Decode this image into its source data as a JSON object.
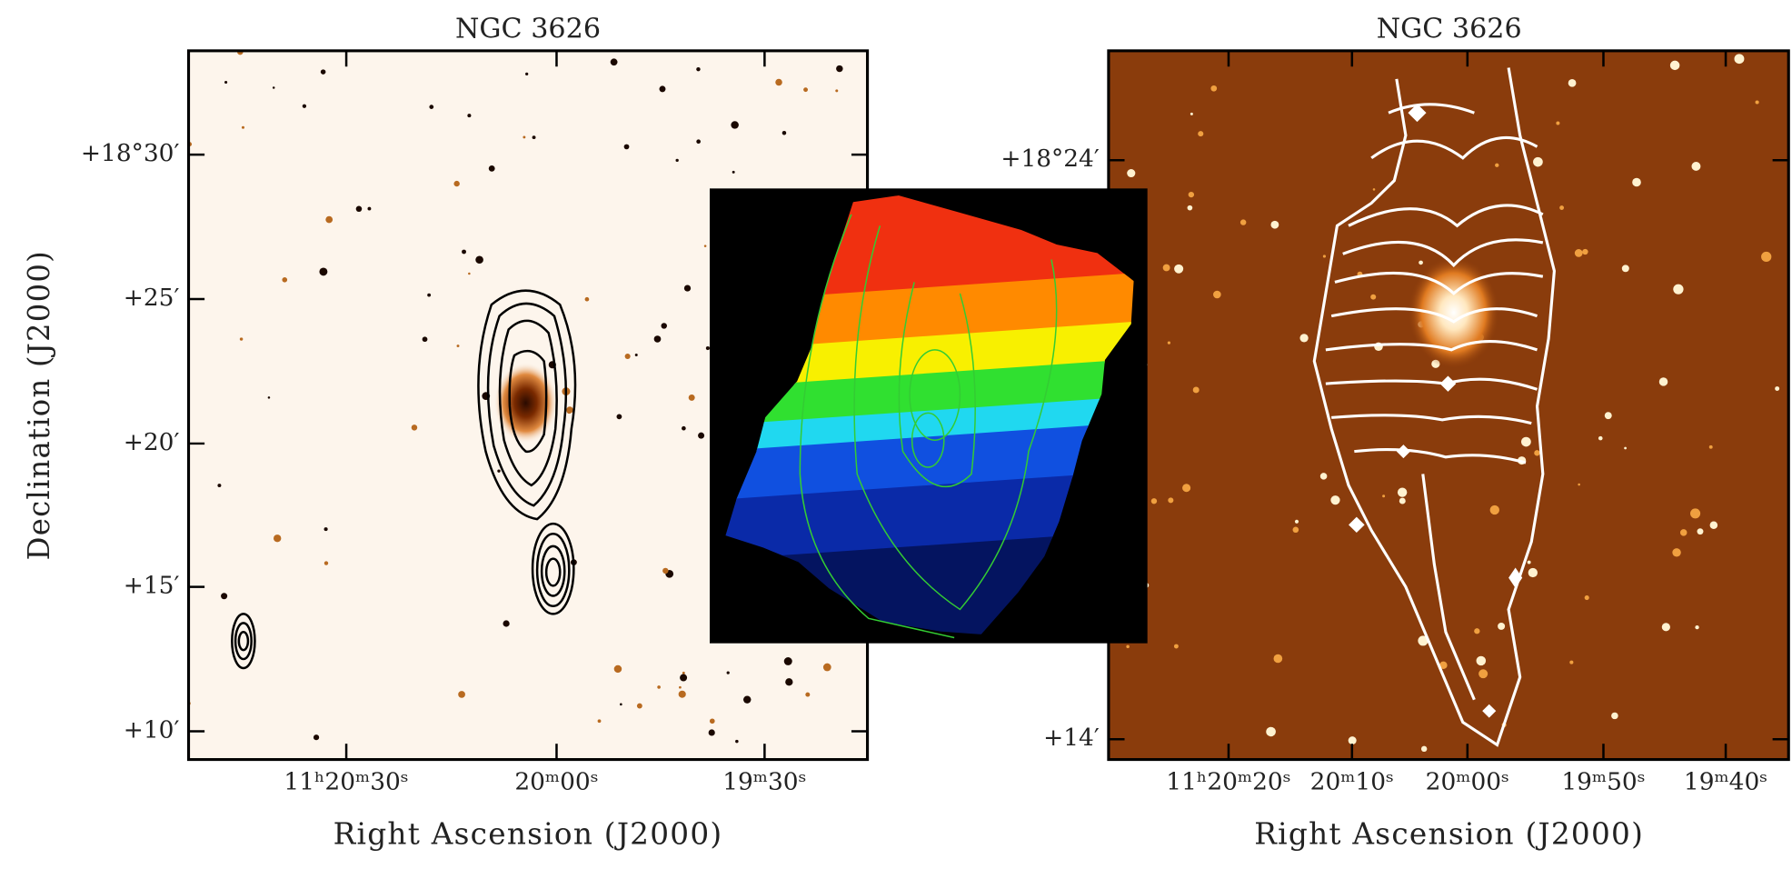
{
  "panels": [
    {
      "title": "NGC 3626",
      "x_label": "Right Ascension (J2000)",
      "y_label": "Declination (J2000)",
      "y_ticks": [
        "+18°30′",
        "+25′",
        "+20′",
        "+15′",
        "+10′"
      ],
      "x_ticks": [
        "11ʰ20ᵐ30ˢ",
        "20ᵐ00ˢ",
        "19ᵐ30ˢ"
      ]
    },
    {
      "title": "NGC 3626",
      "x_label": "Right Ascension (J2000)",
      "y_ticks": [
        "+18°24′",
        "+14′"
      ],
      "x_ticks": [
        "11ʰ20ᵐ20ˢ",
        "20ᵐ10ˢ",
        "20ᵐ00ˢ",
        "19ᵐ50ˢ",
        "19ᵐ40ˢ"
      ]
    }
  ]
}
